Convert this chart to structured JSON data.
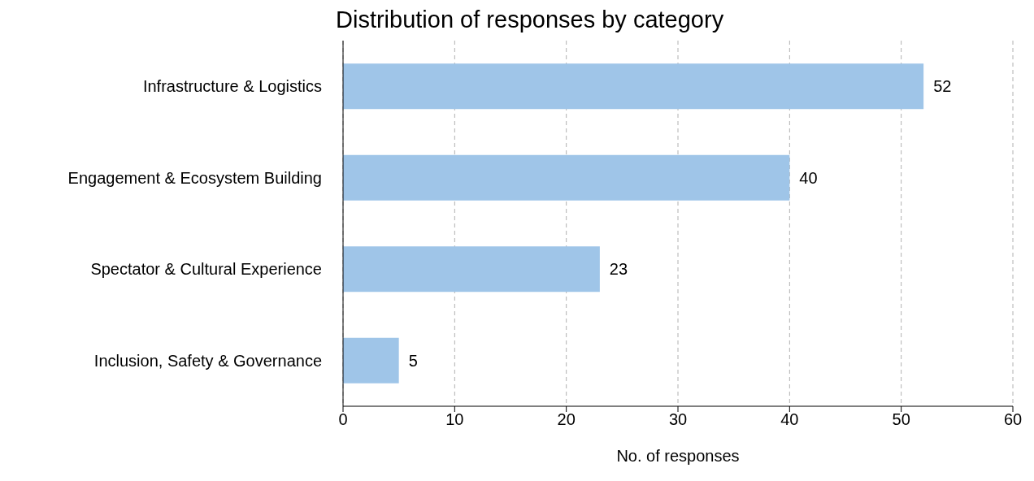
{
  "chart_data": {
    "type": "bar",
    "orientation": "horizontal",
    "title": "Distribution of responses by category",
    "xlabel": "No. of responses",
    "categories": [
      "Infrastructure & Logistics",
      "Engagement & Ecosystem Building",
      "Spectator & Cultural Experience",
      "Inclusion, Safety & Governance"
    ],
    "values": [
      52,
      40,
      23,
      5
    ],
    "color": "#9fc5e8",
    "xlim": [
      0,
      60
    ],
    "xticks": [
      0,
      10,
      20,
      30,
      40,
      50,
      60
    ],
    "grid": "x",
    "data_labels": true
  }
}
